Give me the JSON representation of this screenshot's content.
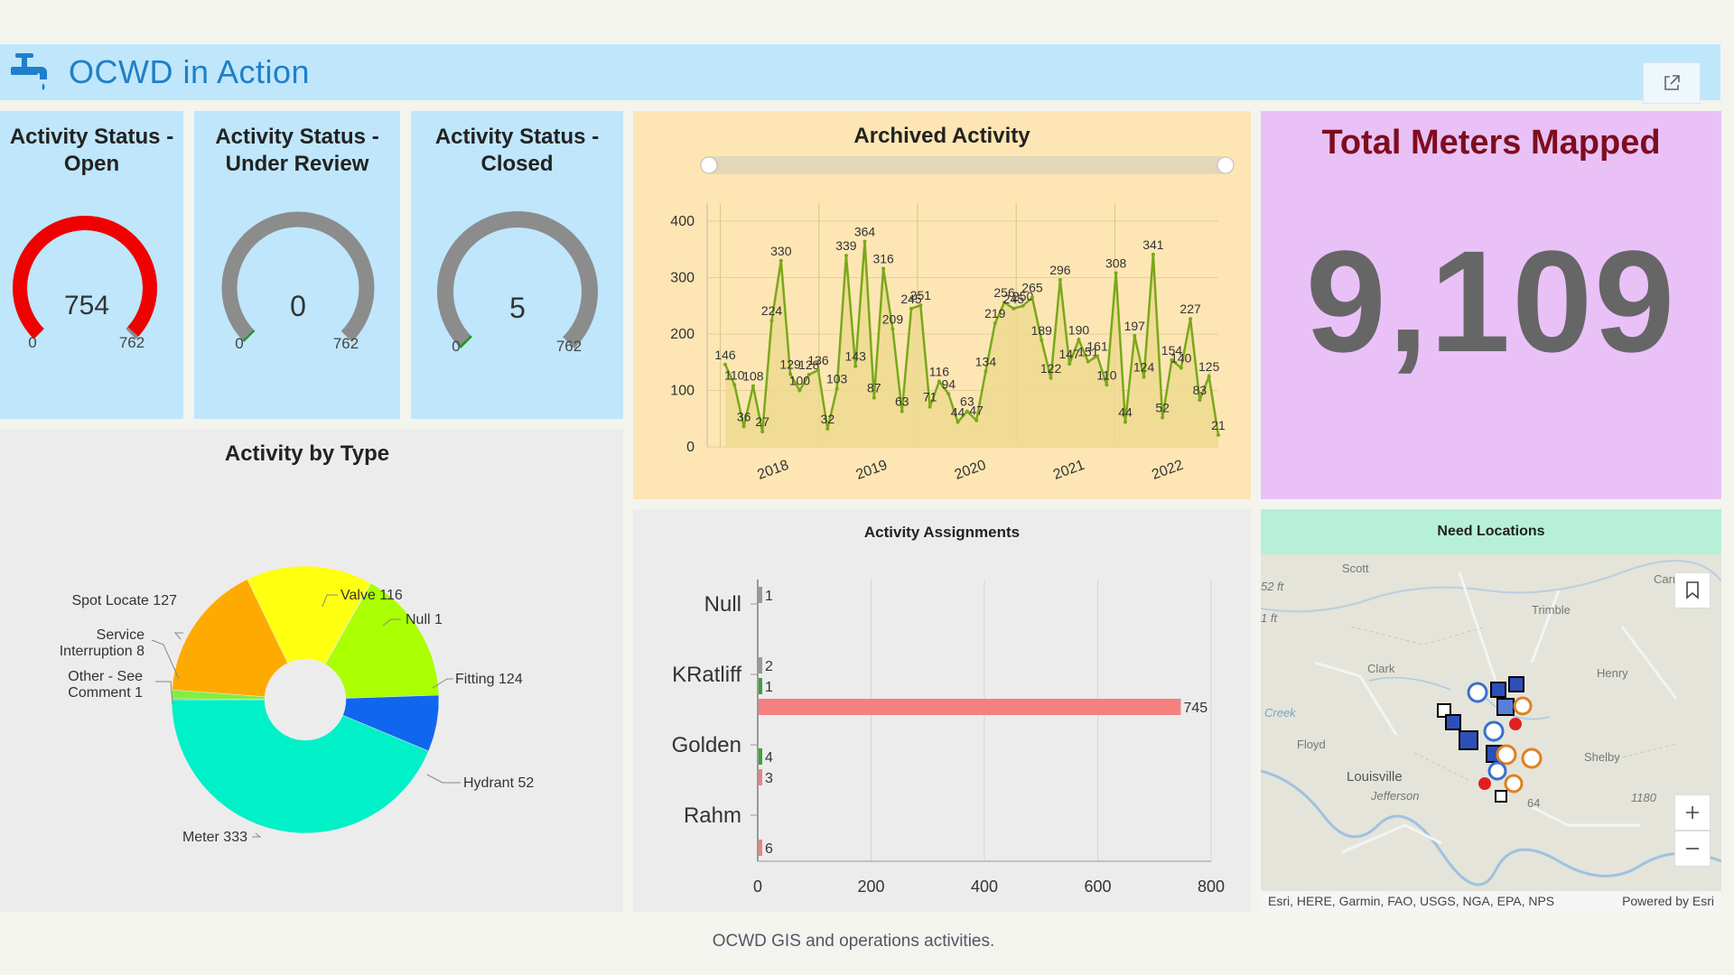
{
  "header": {
    "title": "OCWD in Action"
  },
  "gauges": [
    {
      "title": "Activity Status - Open",
      "value": 754,
      "value_label": "754",
      "min": "0",
      "max": "762",
      "max_value": 762,
      "color": "#f00000"
    },
    {
      "title": "Activity Status - Under Review",
      "value": 0,
      "value_label": "0",
      "min": "0",
      "max": "762",
      "max_value": 762,
      "color": "#1a9a1a"
    },
    {
      "title": "Activity Status - Closed",
      "value": 5,
      "value_label": "5",
      "min": "0",
      "max": "762",
      "max_value": 762,
      "color": "#1a9a1a"
    }
  ],
  "archived": {
    "title": "Archived Activity",
    "chart_data": {
      "type": "area",
      "x_tick_labels": [
        "2018",
        "2019",
        "2020",
        "2021",
        "2022"
      ],
      "y_tick_labels": [
        "0",
        "100",
        "200",
        "300",
        "400"
      ],
      "ylim": [
        0,
        400
      ],
      "values": [
        146,
        110,
        36,
        108,
        27,
        224,
        330,
        129,
        100,
        128,
        136,
        32,
        103,
        339,
        143,
        364,
        87,
        316,
        209,
        63,
        245,
        251,
        71,
        116,
        94,
        44,
        63,
        47,
        134,
        219,
        256,
        245,
        250,
        265,
        189,
        122,
        296,
        147,
        190,
        151,
        161,
        110,
        308,
        44,
        197,
        124,
        341,
        52,
        154,
        140,
        227,
        83,
        125,
        21
      ],
      "point_labels": [
        "146",
        "110",
        "36",
        "108",
        "27",
        "224",
        "330",
        "129",
        "100",
        "128",
        "136",
        "32",
        "103",
        "339",
        "143",
        "364",
        "87",
        "316",
        "209",
        "63",
        "245",
        "251",
        "71",
        "116",
        "94",
        "44",
        "63",
        "47",
        "134",
        "219",
        "256",
        "245",
        "250",
        "265",
        "189",
        "122",
        "296",
        "147",
        "190",
        "151",
        "161",
        "110",
        "308",
        "44",
        "197",
        "124",
        "341",
        "52",
        "154",
        "140",
        "227",
        "83",
        "125",
        "21"
      ],
      "line_color": "#7aa81a",
      "fill_color": "#efd990",
      "grid": true
    }
  },
  "total_meters": {
    "title": "Total Meters Mapped",
    "value": "9,109"
  },
  "by_type": {
    "title": "Activity by Type",
    "chart_data": {
      "type": "pie",
      "donut": true,
      "slices": [
        {
          "label": "Valve 116",
          "value": 116,
          "color": "#ffff10"
        },
        {
          "label": "Null 1",
          "value": 1,
          "color": "#ffff10"
        },
        {
          "label": "Fitting 124",
          "value": 124,
          "color": "#aaff00"
        },
        {
          "label": "Hydrant 52",
          "value": 52,
          "color": "#1166ee"
        },
        {
          "label": "Meter 333",
          "value": 333,
          "color": "#00f0c8"
        },
        {
          "label": "Other - See Comment 1",
          "value": 1,
          "color": "#30c830"
        },
        {
          "label": "Service Interruption 8",
          "value": 8,
          "color": "#80ef40"
        },
        {
          "label": "Spot Locate 127",
          "value": 127,
          "color": "#ffaa00"
        }
      ],
      "label_lines": {
        "valve": "Valve 116",
        "null": "Null 1",
        "fitting": "Fitting 124",
        "hydrant": "Hydrant 52",
        "meter": "Meter 333",
        "other_1": "Other - See",
        "other_2": "Comment 1",
        "service_1": "Service",
        "service_2": "Interruption 8",
        "spot": "Spot Locate 127"
      }
    }
  },
  "assignments": {
    "title": "Activity Assignments",
    "chart_data": {
      "type": "bar",
      "orientation": "horizontal",
      "categories": [
        "Null",
        "KRatliff",
        "Golden",
        "Rahm"
      ],
      "series": [
        {
          "color": "#999999",
          "values": [
            1,
            2,
            null,
            null
          ]
        },
        {
          "color": "#3aa335",
          "values": [
            null,
            1,
            4,
            null
          ]
        },
        {
          "color": "#f58080",
          "values": [
            null,
            745,
            3,
            6
          ]
        }
      ],
      "xlim": [
        0,
        800
      ],
      "x_tick_labels": [
        "0",
        "200",
        "400",
        "600",
        "800"
      ],
      "grid": true
    }
  },
  "need_locations": {
    "title": "Need Locations",
    "place_labels": [
      "Scott",
      "Carroll",
      "Trimble",
      "Henry",
      "Clark",
      "Floyd",
      "Shelby",
      "Louisville",
      "Jefferson",
      "Creek",
      "52 ft",
      "1 ft",
      "64",
      "1180"
    ],
    "attribution": "Esri, HERE, Garmin, FAO, USGS, NGA, EPA, NPS",
    "powered_by": "Powered by Esri"
  },
  "footer": {
    "text": "OCWD GIS and operations activities."
  }
}
